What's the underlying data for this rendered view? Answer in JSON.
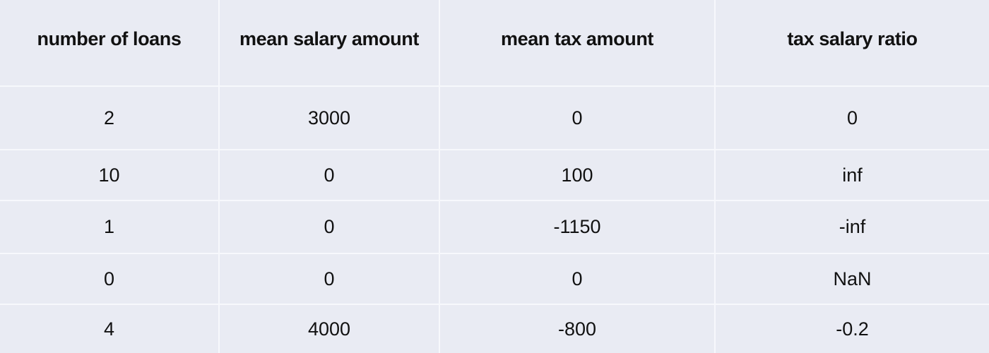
{
  "table": {
    "columns": [
      "number of loans",
      "mean salary amount",
      "mean tax  amount",
      "tax salary ratio"
    ],
    "rows": [
      [
        "2",
        "3000",
        "0",
        "0"
      ],
      [
        "10",
        "0",
        "100",
        "inf"
      ],
      [
        "1",
        "0",
        "-1150",
        "-inf"
      ],
      [
        "0",
        "0",
        "0",
        "NaN"
      ],
      [
        "4",
        "4000",
        "-800",
        "-0.2"
      ]
    ]
  }
}
